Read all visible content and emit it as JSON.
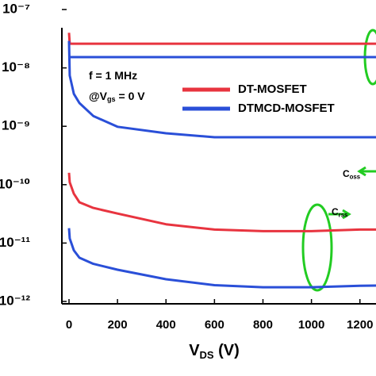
{
  "chart_data": {
    "type": "line",
    "log_y": true,
    "xlabel": [
      {
        "t": "V"
      },
      {
        "t": "DS",
        "sub": true
      },
      {
        "t": " (V)"
      }
    ],
    "x": [
      0,
      3,
      20,
      43,
      100,
      200,
      400,
      600,
      800,
      1000,
      1200,
      1269
    ],
    "xlim": [
      -30,
      1269
    ],
    "ylim": [
      1e-12,
      1e-07
    ],
    "xticks": [
      0,
      200,
      400,
      600,
      800,
      1000,
      1200
    ],
    "yticks": [
      {
        "value": 1e-12,
        "label": "10⁻¹²"
      },
      {
        "value": 1e-11,
        "label": "10⁻¹¹"
      },
      {
        "value": 1e-10,
        "label": "10⁻¹⁰"
      },
      {
        "value": 1e-09,
        "label": "10⁻⁹"
      },
      {
        "value": 1e-08,
        "label": "10⁻⁸"
      },
      {
        "value": 1e-07,
        "label": "10⁻⁷"
      }
    ],
    "series": [
      {
        "name": "DT-MOSFET",
        "color": "#e8343f",
        "curves": [
          {
            "values": [
              4e-08,
              2.6e-08,
              2.6e-08,
              2.6e-08,
              2.6e-08,
              2.6e-08,
              2.6e-08,
              2.6e-08,
              2.6e-08,
              2.6e-08,
              2.6e-08,
              2.6e-08
            ]
          },
          {
            "values": [
              1.6e-10,
              1.1e-10,
              7e-11,
              5e-11,
              4e-11,
              3.2e-11,
              2.1e-11,
              1.7e-11,
              1.6e-11,
              1.6e-11,
              1.7e-11,
              1.7e-11
            ]
          }
        ]
      },
      {
        "name": "DTMCD-MOSFET",
        "color": "#2a4fd8",
        "curves": [
          {
            "values": [
              null,
              1.53e-08,
              1.53e-08,
              1.53e-08,
              1.53e-08,
              1.53e-08,
              1.53e-08,
              1.53e-08,
              1.53e-08,
              1.53e-08,
              1.53e-08,
              1.53e-08
            ]
          },
          {
            "values": [
              2.9e-08,
              7.4e-09,
              3.6e-09,
              2.5e-09,
              1.5e-09,
              9.8e-10,
              7.6e-10,
              6.5e-10,
              6.5e-10,
              6.5e-10,
              6.5e-10,
              6.5e-10
            ]
          },
          {
            "values": [
              1.8e-11,
              1.2e-11,
              7.5e-12,
              5.6e-12,
              4.4e-12,
              3.5e-12,
              2.4e-12,
              1.9e-12,
              1.75e-12,
              1.75e-12,
              1.85e-12,
              1.87e-12
            ]
          }
        ]
      }
    ],
    "annotations": [
      [
        {
          "t": "f = 1 MHz"
        }
      ],
      [
        {
          "t": "@V"
        },
        {
          "t": "gs",
          "sub": true
        },
        {
          "t": " = 0 V"
        }
      ],
      [
        {
          "t": "C"
        },
        {
          "t": "oss",
          "sub": true
        }
      ],
      [
        {
          "t": "C"
        },
        {
          "t": "rss",
          "sub": true
        }
      ]
    ]
  }
}
